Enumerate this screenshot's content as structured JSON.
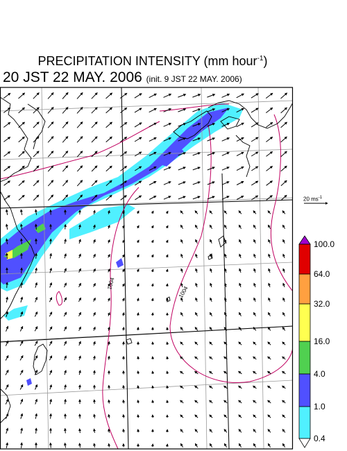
{
  "title": {
    "line1_main": "PRECIPITATION INTENSITY (mm hour",
    "line1_exp": "-1",
    "line1_end": ")",
    "line2_main": "20 JST 22 MAY. 2006",
    "line2_init": "(init. 9 JST 22 MAY. 2006)"
  },
  "wind_scale": {
    "value": "20 ms",
    "exp": "-1"
  },
  "legend": {
    "levels": [
      "100.0",
      "64.0",
      "32.0",
      "16.0",
      "4.0",
      "1.0",
      "0.4"
    ],
    "colors": [
      "#a000d0",
      "#e00000",
      "#ffa040",
      "#ffff50",
      "#50d050",
      "#5050ff",
      "#50f0ff",
      "#ffffff"
    ]
  },
  "contour_labels": [
    "1004",
    "1004"
  ],
  "colors": {
    "contour": "#c00060",
    "coast": "#000000",
    "grid": "#9a9a9a"
  }
}
